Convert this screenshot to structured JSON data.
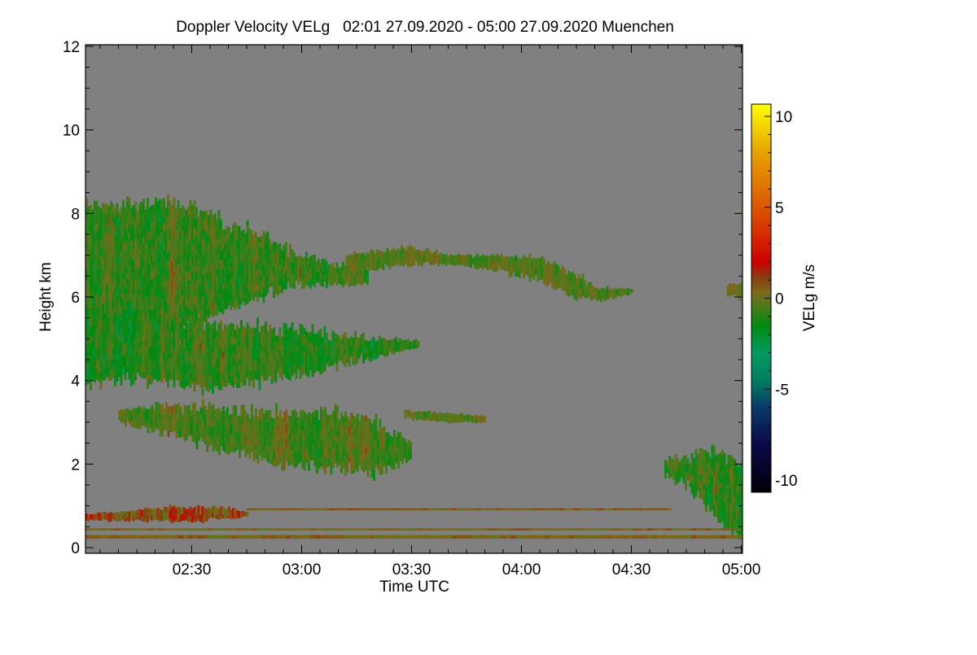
{
  "chart_data": {
    "type": "heatmap",
    "title": "Doppler Velocity VELg   02:01 27.09.2020 - 05:00 27.09.2020 Muenchen",
    "xlabel": "Time UTC",
    "ylabel": "Height km",
    "colorbar_label": "VELg m/s",
    "x_unit": "minutes after 02:00 UTC",
    "xlim": [
      1,
      181
    ],
    "ylim": [
      0,
      12
    ],
    "x_ticks": [
      {
        "value": 30,
        "label": "02:30"
      },
      {
        "value": 60,
        "label": "03:00"
      },
      {
        "value": 90,
        "label": "03:30"
      },
      {
        "value": 120,
        "label": "04:00"
      },
      {
        "value": 150,
        "label": "04:30"
      },
      {
        "value": 180,
        "label": "05:00"
      }
    ],
    "y_ticks": [
      {
        "value": 0,
        "label": "0"
      },
      {
        "value": 2,
        "label": "2"
      },
      {
        "value": 4,
        "label": "4"
      },
      {
        "value": 6,
        "label": "6"
      },
      {
        "value": 8,
        "label": "8"
      },
      {
        "value": 10,
        "label": "10"
      },
      {
        "value": 12,
        "label": "12"
      }
    ],
    "colorbar_range": [
      -10.7,
      10.7
    ],
    "colorbar_ticks": [
      {
        "value": 10,
        "label": "10"
      },
      {
        "value": 5,
        "label": "5"
      },
      {
        "value": 0,
        "label": "0"
      },
      {
        "value": -5,
        "label": "-5"
      },
      {
        "value": -10,
        "label": "-10"
      }
    ],
    "no_data_color": "#808080",
    "colorscale": [
      [
        -10.7,
        "#000008"
      ],
      [
        -8,
        "#0a0a4a"
      ],
      [
        -6,
        "#0a3a6a"
      ],
      [
        -4.5,
        "#008060"
      ],
      [
        -3,
        "#009a60"
      ],
      [
        -1.5,
        "#008a10"
      ],
      [
        -0.5,
        "#4a7a1a"
      ],
      [
        0.3,
        "#7a6a1a"
      ],
      [
        1.2,
        "#8a3a10"
      ],
      [
        2,
        "#cc0000"
      ],
      [
        4,
        "#d83a00"
      ],
      [
        6,
        "#e07000"
      ],
      [
        8,
        "#e8a000"
      ],
      [
        10.7,
        "#ffff00"
      ]
    ],
    "echo_regions": [
      {
        "name": "upper-cloud",
        "mean_velocity": -0.8,
        "spread": 1.3,
        "profile": [
          [
            1,
            5.4,
            8.2
          ],
          [
            15,
            5.3,
            8.3
          ],
          [
            25,
            5.2,
            8.3
          ],
          [
            35,
            5.5,
            8.0
          ],
          [
            45,
            5.9,
            7.6
          ],
          [
            55,
            6.2,
            7.2
          ],
          [
            65,
            6.3,
            6.9
          ],
          [
            78,
            6.3,
            6.6
          ]
        ]
      },
      {
        "name": "mid-cloud",
        "mean_velocity": -1.0,
        "spread": 1.3,
        "profile": [
          [
            1,
            3.9,
            5.8
          ],
          [
            15,
            4.1,
            5.8
          ],
          [
            25,
            3.9,
            5.5
          ],
          [
            35,
            3.8,
            5.4
          ],
          [
            50,
            4.0,
            5.3
          ],
          [
            62,
            4.2,
            5.2
          ],
          [
            72,
            4.4,
            5.1
          ],
          [
            82,
            4.6,
            5.0
          ],
          [
            92,
            4.8,
            4.95
          ]
        ]
      },
      {
        "name": "trailing-upper-layer",
        "mean_velocity": -0.3,
        "spread": 1.0,
        "profile": [
          [
            72,
            6.6,
            7.0
          ],
          [
            90,
            6.8,
            7.2
          ],
          [
            100,
            6.8,
            7.0
          ],
          [
            115,
            6.6,
            7.0
          ],
          [
            125,
            6.4,
            6.9
          ],
          [
            135,
            6.0,
            6.5
          ],
          [
            142,
            5.9,
            6.2
          ],
          [
            150,
            6.1,
            6.2
          ]
        ]
      },
      {
        "name": "lower-cloud",
        "mean_velocity": -0.5,
        "spread": 1.2,
        "profile": [
          [
            10,
            3.0,
            3.3
          ],
          [
            25,
            2.7,
            3.4
          ],
          [
            40,
            2.3,
            3.3
          ],
          [
            55,
            2.0,
            3.25
          ],
          [
            70,
            1.9,
            3.3
          ],
          [
            80,
            1.8,
            3.0
          ],
          [
            90,
            2.1,
            2.5
          ]
        ]
      },
      {
        "name": "lower-cloud-top-layer",
        "mean_velocity": -0.3,
        "spread": 1.0,
        "profile": [
          [
            88,
            3.1,
            3.3
          ],
          [
            100,
            3.0,
            3.2
          ],
          [
            110,
            3.0,
            3.15
          ]
        ]
      },
      {
        "name": "boundary-layer-echo",
        "mean_velocity": 0.9,
        "spread": 1.5,
        "profile": [
          [
            1,
            0.65,
            0.8
          ],
          [
            15,
            0.65,
            0.9
          ],
          [
            30,
            0.65,
            1.0
          ],
          [
            40,
            0.7,
            0.95
          ],
          [
            45,
            0.75,
            0.85
          ]
        ]
      },
      {
        "name": "late-low-cloud",
        "mean_velocity": -1.0,
        "spread": 1.5,
        "profile": [
          [
            159,
            1.7,
            2.1
          ],
          [
            165,
            1.5,
            2.2
          ],
          [
            170,
            1.0,
            2.4
          ],
          [
            175,
            0.5,
            2.2
          ],
          [
            181,
            0.2,
            2.0
          ]
        ]
      },
      {
        "name": "late-high-echo",
        "mean_velocity": 0.0,
        "spread": 0.8,
        "profile": [
          [
            176,
            6.05,
            6.3
          ],
          [
            181,
            6.0,
            6.4
          ]
        ]
      },
      {
        "name": "ground-clutter-line-1",
        "mean_velocity": 0.4,
        "spread": 0.6,
        "profile": [
          [
            1,
            0.22,
            0.3
          ],
          [
            181,
            0.22,
            0.3
          ]
        ]
      },
      {
        "name": "ground-clutter-line-2",
        "mean_velocity": 0.4,
        "spread": 0.8,
        "profile": [
          [
            1,
            0.42,
            0.46
          ],
          [
            181,
            0.42,
            0.46
          ]
        ]
      },
      {
        "name": "ground-clutter-line-3",
        "mean_velocity": 0.6,
        "spread": 0.6,
        "profile": [
          [
            45,
            0.9,
            0.94
          ],
          [
            160,
            0.9,
            0.94
          ]
        ]
      }
    ]
  }
}
